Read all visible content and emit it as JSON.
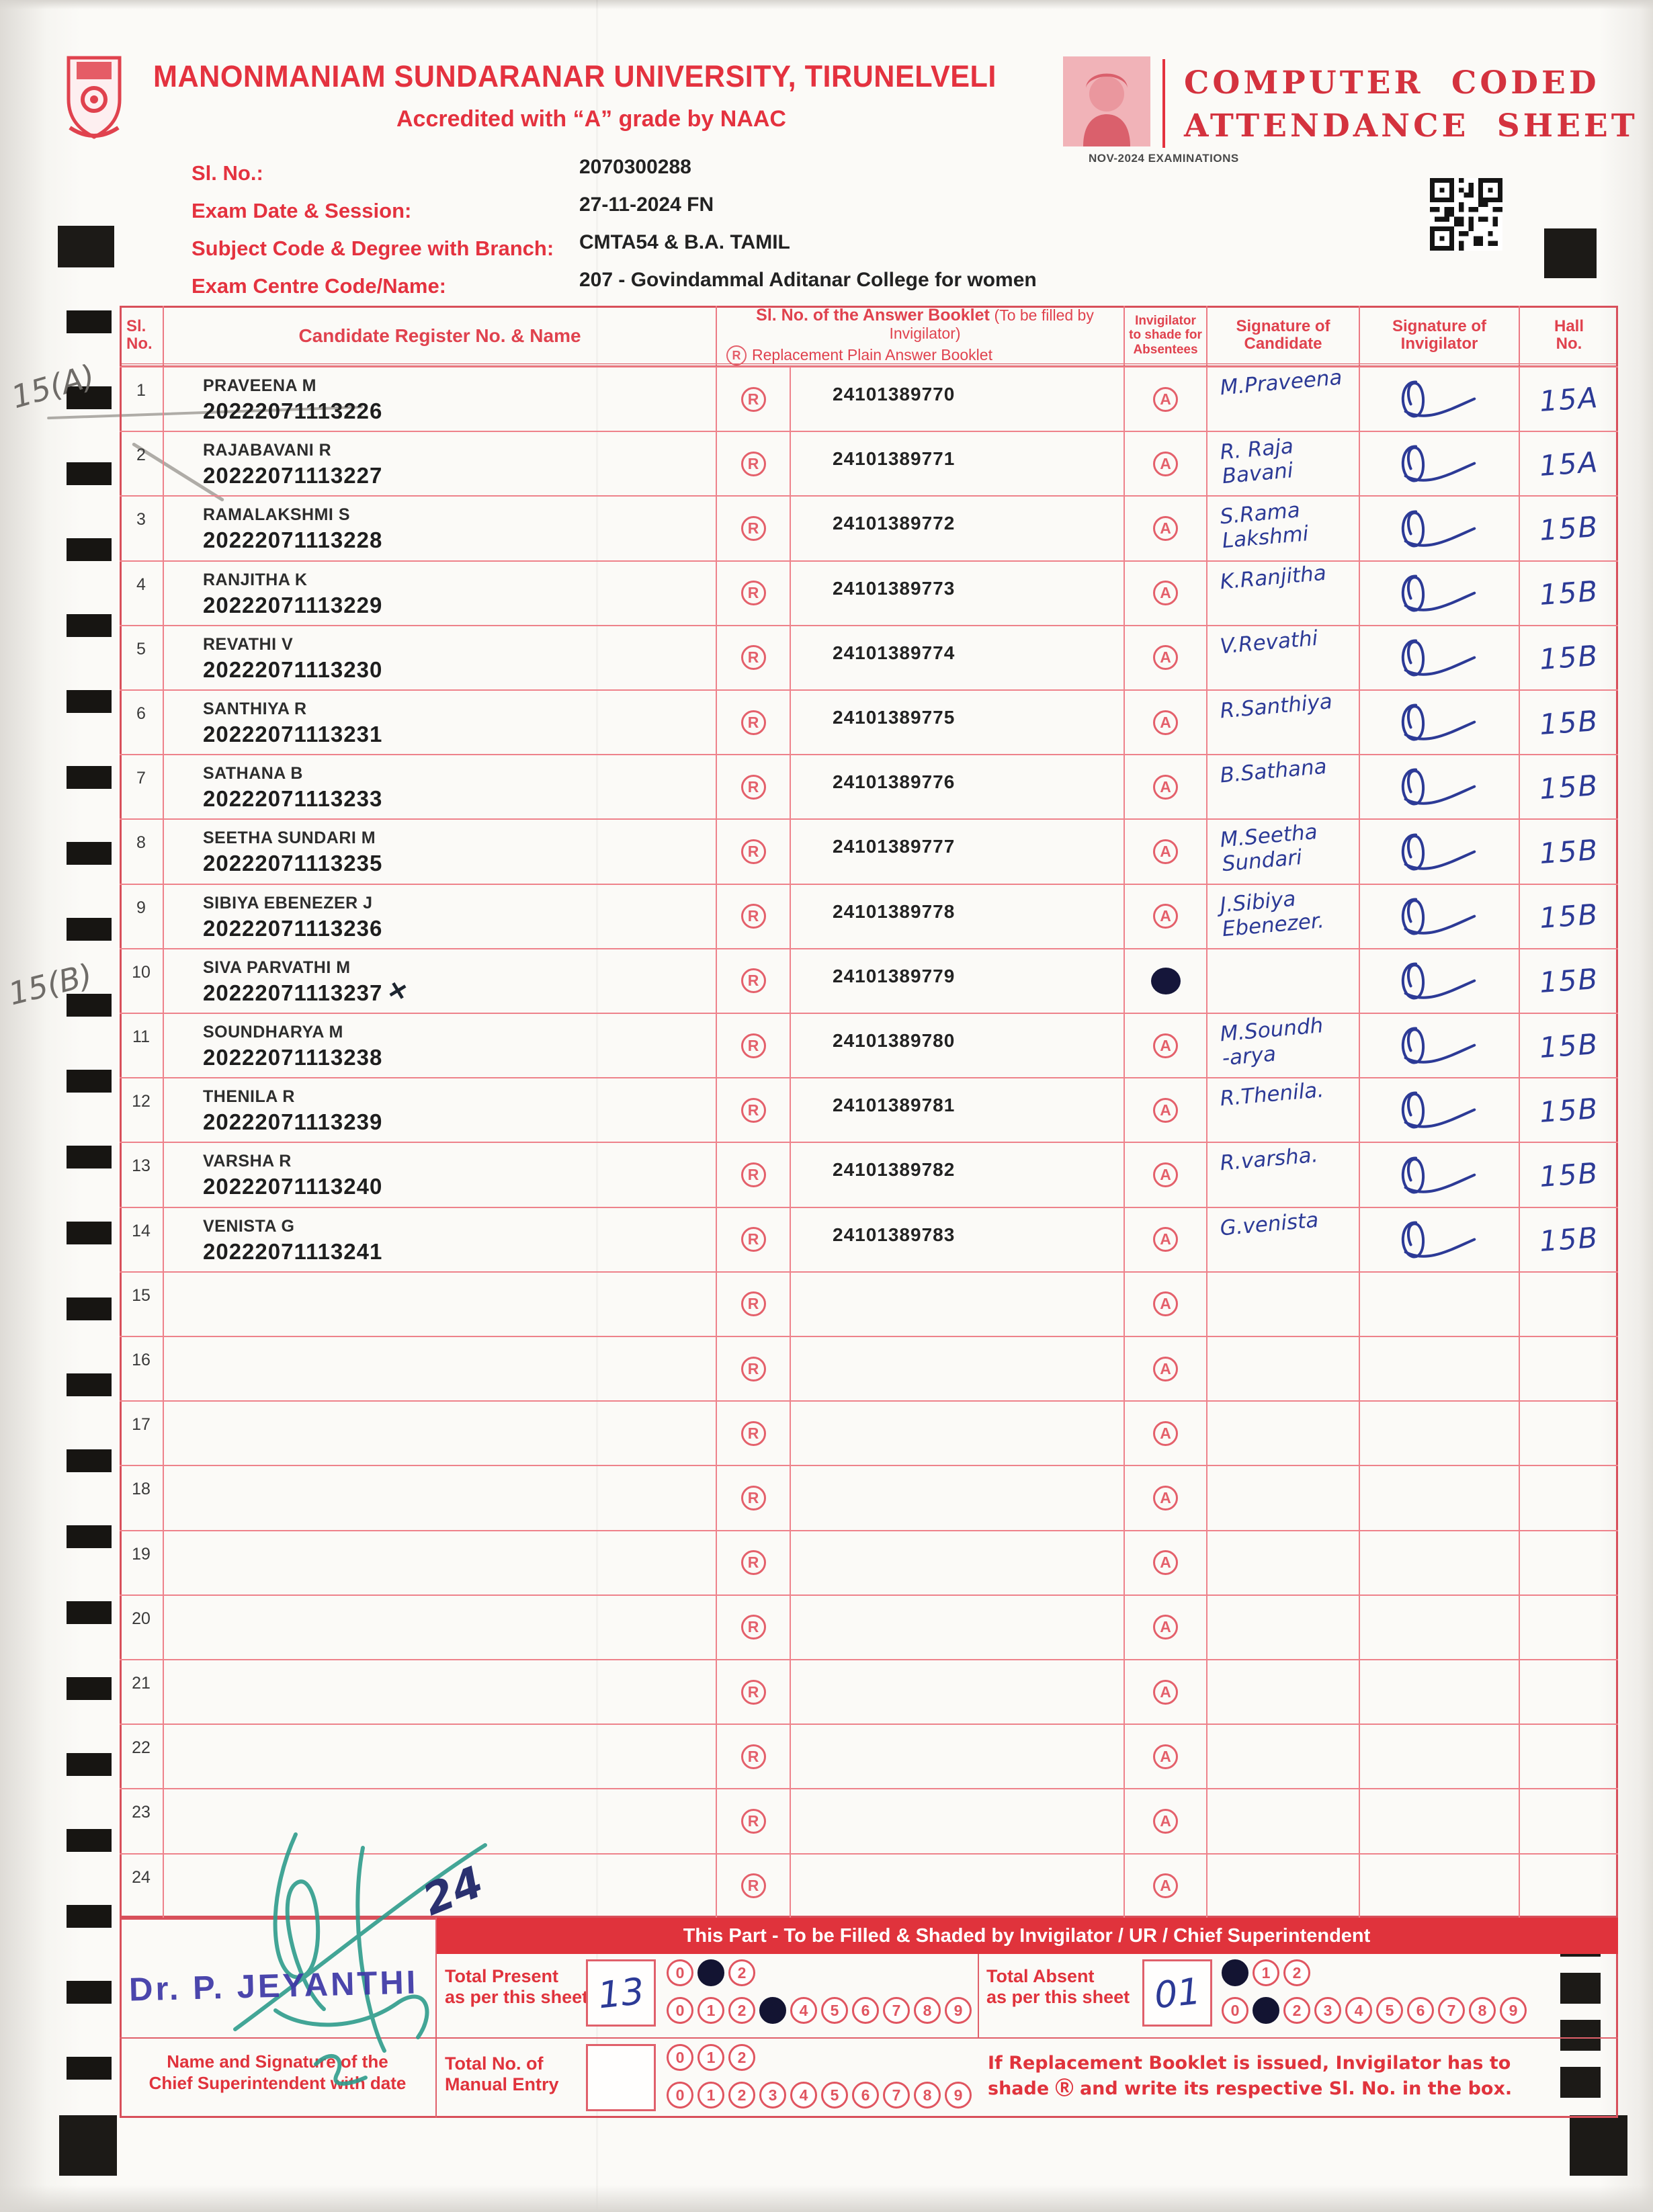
{
  "symbols": {
    "r": "R",
    "a": "A"
  },
  "header": {
    "university": "MANONMANIAM SUNDARANAR UNIVERSITY, TIRUNELVELI",
    "accreditation": "Accredited with “A” grade by NAAC",
    "sheet_title_line1": "COMPUTER CODED",
    "sheet_title_line2": "ATTENDANCE SHEET",
    "exam_session": "NOV-2024 EXAMINATIONS",
    "fields": [
      {
        "label": "Sl. No.:",
        "value": "2070300288"
      },
      {
        "label": "Exam Date & Session:",
        "value": "27-11-2024 FN"
      },
      {
        "label": "Subject Code & Degree with Branch:",
        "value": "CMTA54 & B.A. TAMIL"
      },
      {
        "label": "Exam Centre Code/Name:",
        "value": "207 - Govindammal Aditanar College for women"
      }
    ]
  },
  "margin_notes": {
    "note_a": "15(A)",
    "note_b": "15(B)"
  },
  "table": {
    "columns": {
      "sl_l1": "Sl.",
      "sl_l2": "No.",
      "candidate": "Candidate Register No. & Name",
      "booklet_bold": "Sl. No. of the Answer Booklet",
      "booklet_paren": "(To be filled by Invigilator)",
      "booklet_line2": "Replacement Plain Answer Booklet",
      "abs_l1": "Invigilator",
      "abs_l2": "to shade for",
      "abs_l3": "Absentees",
      "sig_cand_l1": "Signature of",
      "sig_cand_l2": "Candidate",
      "sig_inv_l1": "Signature of",
      "sig_inv_l2": "Invigilator",
      "hall_l1": "Hall",
      "hall_l2": "No."
    },
    "rows": [
      {
        "no": "1",
        "name": "PRAVEENA M",
        "regno": "20222071113226",
        "mark": "",
        "booklet": "24101389770",
        "absent": false,
        "sig1": "M.Praveena",
        "sig2": "",
        "inv": true,
        "hall": "15A"
      },
      {
        "no": "2",
        "name": "RAJABAVANI R",
        "regno": "20222071113227",
        "mark": "",
        "booklet": "24101389771",
        "absent": false,
        "sig1": "R. Raja",
        "sig2": "Bavani",
        "inv": true,
        "hall": "15A"
      },
      {
        "no": "3",
        "name": "RAMALAKSHMI S",
        "regno": "20222071113228",
        "mark": "",
        "booklet": "24101389772",
        "absent": false,
        "sig1": "S.Rama",
        "sig2": "Lakshmi",
        "inv": true,
        "hall": "15B"
      },
      {
        "no": "4",
        "name": "RANJITHA K",
        "regno": "20222071113229",
        "mark": "",
        "booklet": "24101389773",
        "absent": false,
        "sig1": "K.Ranjitha",
        "sig2": "",
        "inv": true,
        "hall": "15B"
      },
      {
        "no": "5",
        "name": "REVATHI V",
        "regno": "20222071113230",
        "mark": "",
        "booklet": "24101389774",
        "absent": false,
        "sig1": "V.Revathi",
        "sig2": "",
        "inv": true,
        "hall": "15B"
      },
      {
        "no": "6",
        "name": "SANTHIYA R",
        "regno": "20222071113231",
        "mark": "",
        "booklet": "24101389775",
        "absent": false,
        "sig1": "R.Santhiya",
        "sig2": "",
        "inv": true,
        "hall": "15B"
      },
      {
        "no": "7",
        "name": "SATHANA B",
        "regno": "20222071113233",
        "mark": "",
        "booklet": "24101389776",
        "absent": false,
        "sig1": "B.Sathana",
        "sig2": "",
        "inv": true,
        "hall": "15B"
      },
      {
        "no": "8",
        "name": "SEETHA SUNDARI M",
        "regno": "20222071113235",
        "mark": "",
        "booklet": "24101389777",
        "absent": false,
        "sig1": "M.Seetha",
        "sig2": "Sundari",
        "inv": true,
        "hall": "15B"
      },
      {
        "no": "9",
        "name": "SIBIYA EBENEZER J",
        "regno": "20222071113236",
        "mark": "",
        "booklet": "24101389778",
        "absent": false,
        "sig1": "J.Sibiya",
        "sig2": "Ebenezer.",
        "inv": true,
        "hall": "15B"
      },
      {
        "no": "10",
        "name": "SIVA PARVATHI M",
        "regno": "20222071113237",
        "mark": "×",
        "booklet": "24101389779",
        "absent": true,
        "sig1": "",
        "sig2": "",
        "inv": true,
        "hall": "15B"
      },
      {
        "no": "11",
        "name": "SOUNDHARYA M",
        "regno": "20222071113238",
        "mark": "",
        "booklet": "24101389780",
        "absent": false,
        "sig1": "M.Soundh",
        "sig2": "-arya",
        "inv": true,
        "hall": "15B"
      },
      {
        "no": "12",
        "name": "THENILA R",
        "regno": "20222071113239",
        "mark": "",
        "booklet": "24101389781",
        "absent": false,
        "sig1": "R.Thenila.",
        "sig2": "",
        "inv": true,
        "hall": "15B"
      },
      {
        "no": "13",
        "name": "VARSHA R",
        "regno": "20222071113240",
        "mark": "",
        "booklet": "24101389782",
        "absent": false,
        "sig1": "R.varsha.",
        "sig2": "",
        "inv": true,
        "hall": "15B"
      },
      {
        "no": "14",
        "name": "VENISTA G",
        "regno": "20222071113241",
        "mark": "",
        "booklet": "24101389783",
        "absent": false,
        "sig1": "G.venista",
        "sig2": "",
        "inv": true,
        "hall": "15B"
      },
      {
        "no": "15",
        "name": "",
        "regno": "",
        "mark": "",
        "booklet": "",
        "absent": false,
        "sig1": "",
        "sig2": "",
        "inv": false,
        "hall": ""
      },
      {
        "no": "16",
        "name": "",
        "regno": "",
        "mark": "",
        "booklet": "",
        "absent": false,
        "sig1": "",
        "sig2": "",
        "inv": false,
        "hall": ""
      },
      {
        "no": "17",
        "name": "",
        "regno": "",
        "mark": "",
        "booklet": "",
        "absent": false,
        "sig1": "",
        "sig2": "",
        "inv": false,
        "hall": ""
      },
      {
        "no": "18",
        "name": "",
        "regno": "",
        "mark": "",
        "booklet": "",
        "absent": false,
        "sig1": "",
        "sig2": "",
        "inv": false,
        "hall": ""
      },
      {
        "no": "19",
        "name": "",
        "regno": "",
        "mark": "",
        "booklet": "",
        "absent": false,
        "sig1": "",
        "sig2": "",
        "inv": false,
        "hall": ""
      },
      {
        "no": "20",
        "name": "",
        "regno": "",
        "mark": "",
        "booklet": "",
        "absent": false,
        "sig1": "",
        "sig2": "",
        "inv": false,
        "hall": ""
      },
      {
        "no": "21",
        "name": "",
        "regno": "",
        "mark": "",
        "booklet": "",
        "absent": false,
        "sig1": "",
        "sig2": "",
        "inv": false,
        "hall": ""
      },
      {
        "no": "22",
        "name": "",
        "regno": "",
        "mark": "",
        "booklet": "",
        "absent": false,
        "sig1": "",
        "sig2": "",
        "inv": false,
        "hall": ""
      },
      {
        "no": "23",
        "name": "",
        "regno": "",
        "mark": "",
        "booklet": "",
        "absent": false,
        "sig1": "",
        "sig2": "",
        "inv": false,
        "hall": ""
      },
      {
        "no": "24",
        "name": "",
        "regno": "",
        "mark": "",
        "booklet": "",
        "absent": false,
        "sig1": "",
        "sig2": "",
        "inv": false,
        "hall": ""
      }
    ]
  },
  "footer": {
    "banner": "This Part - To be Filled & Shaded by Invigilator / UR / Chief Superintendent",
    "total_present_l1": "Total Present",
    "total_present_l2": "as per this sheet",
    "total_present_value": "13",
    "present_tens_filled": 1,
    "present_units_filled": 3,
    "total_absent_l1": "Total Absent",
    "total_absent_l2": "as per this sheet",
    "total_absent_value": "01",
    "absent_tens_filled": 0,
    "absent_units_filled": 1,
    "manual_l1": "Total No. of",
    "manual_l2": "Manual Entry",
    "manual_value": "",
    "manual_tens_filled": -1,
    "manual_units_filled": -1,
    "note_line1": "If Replacement Booklet is issued, Invigilator has to",
    "note_line2": "shade Ⓡ and write its respective Sl. No. in the box.",
    "chief_l1": "Name and Signature of the",
    "chief_l2": "Chief Superintendent with date",
    "stamp": "Dr. P. JEYANTHI",
    "handwritten_date": "24"
  }
}
